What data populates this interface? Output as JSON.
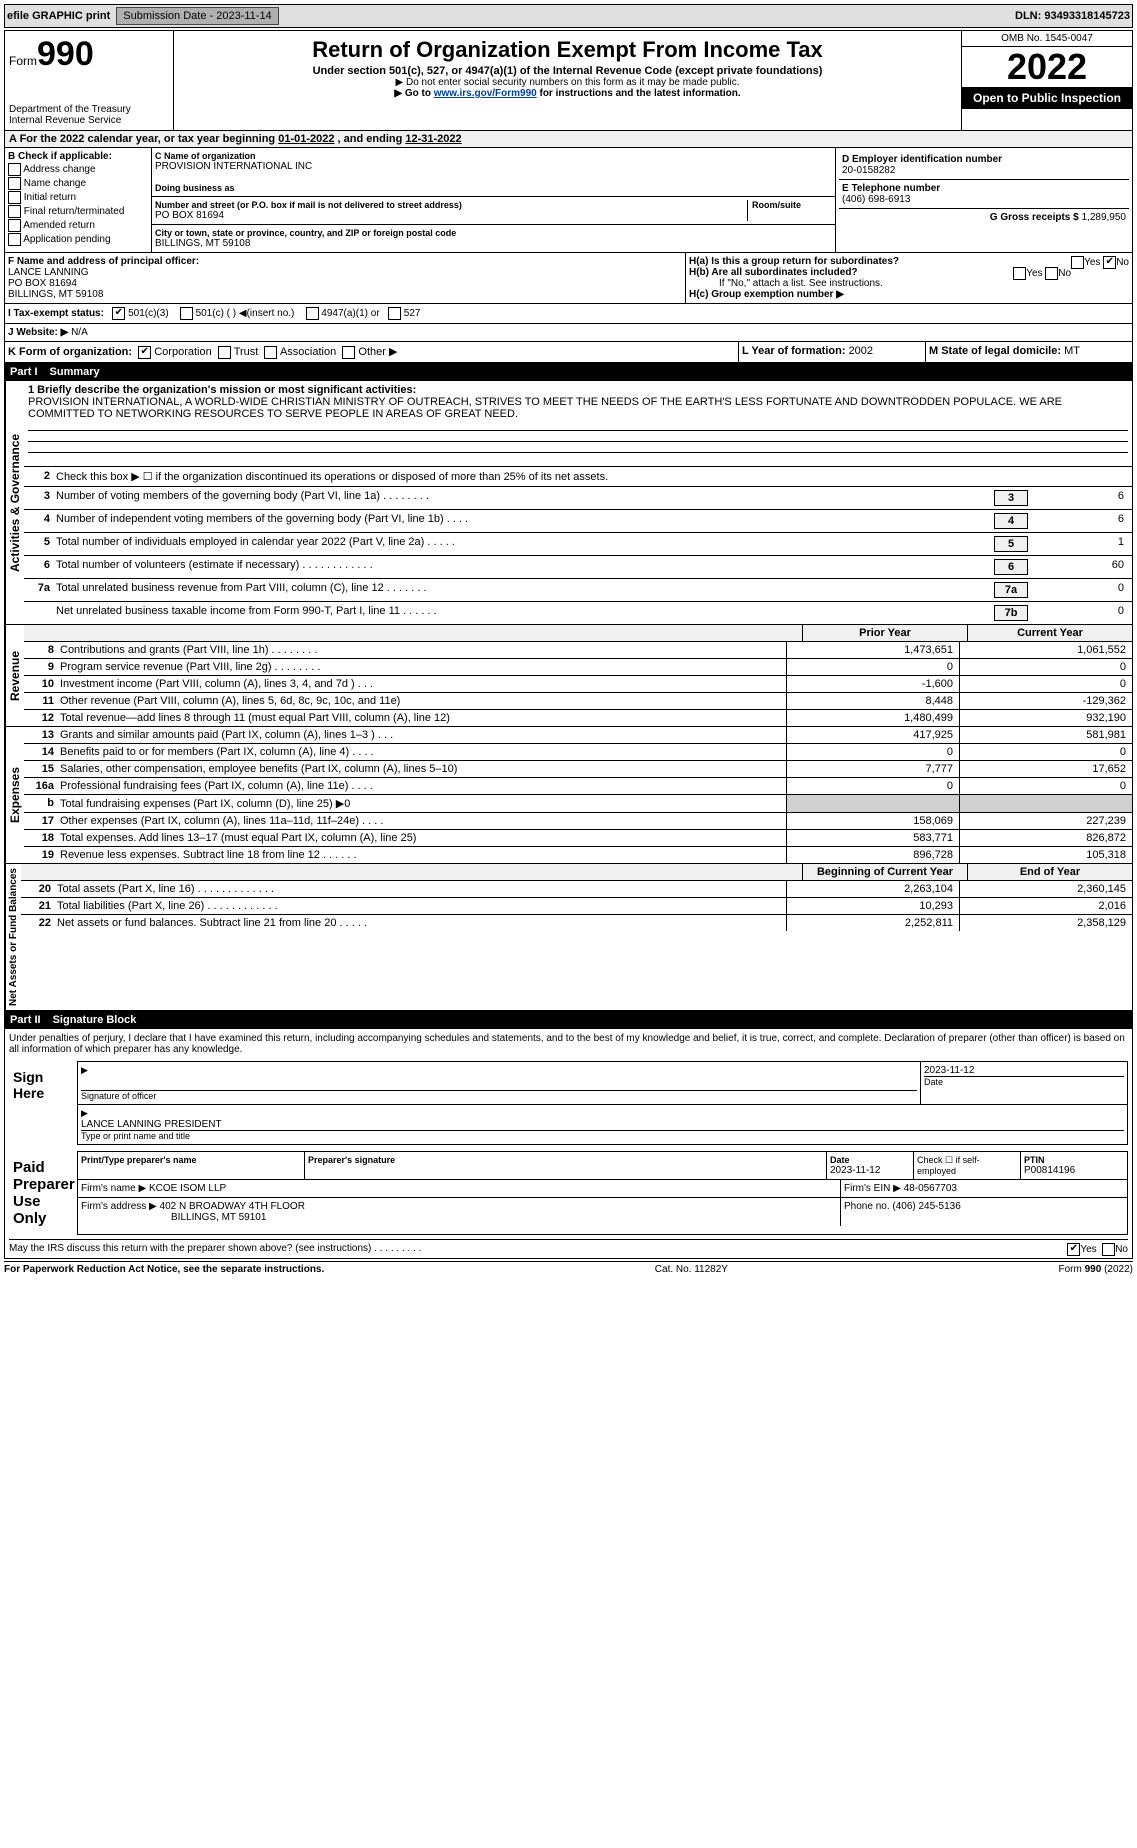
{
  "topbar": {
    "efile": "efile GRAPHIC print",
    "submission_label": "Submission Date - 2023-11-14",
    "dln": "DLN: 93493318145723"
  },
  "header": {
    "form_label": "Form",
    "form_number": "990",
    "dept1": "Department of the Treasury",
    "dept2": "Internal Revenue Service",
    "title": "Return of Organization Exempt From Income Tax",
    "subtitle": "Under section 501(c), 527, or 4947(a)(1) of the Internal Revenue Code (except private foundations)",
    "note1": "▶ Do not enter social security numbers on this form as it may be made public.",
    "note2_pre": "▶ Go to ",
    "note2_link": "www.irs.gov/Form990",
    "note2_post": " for instructions and the latest information.",
    "omb": "OMB No. 1545-0047",
    "year": "2022",
    "open_pub": "Open to Public Inspection"
  },
  "period": {
    "text_a": "A  For the 2022 calendar year, or tax year beginning ",
    "begin": "01-01-2022",
    "text_b": "   , and ending ",
    "end": "12-31-2022"
  },
  "boxB": {
    "label": "B Check if applicable:",
    "opts": [
      "Address change",
      "Name change",
      "Initial return",
      "Final return/terminated",
      "Amended return",
      "Application pending"
    ]
  },
  "boxC": {
    "name_lbl": "C Name of organization",
    "name": "PROVISION INTERNATIONAL INC",
    "dba_lbl": "Doing business as",
    "dba": "",
    "street_lbl": "Number and street (or P.O. box if mail is not delivered to street address)",
    "room_lbl": "Room/suite",
    "street": "PO BOX 81694",
    "city_lbl": "City or town, state or province, country, and ZIP or foreign postal code",
    "city": "BILLINGS, MT  59108"
  },
  "boxD": {
    "lbl": "D Employer identification number",
    "val": "20-0158282"
  },
  "boxE": {
    "lbl": "E Telephone number",
    "val": "(406) 698-6913"
  },
  "boxG": {
    "lbl": "G Gross receipts $ ",
    "val": "1,289,950"
  },
  "boxF": {
    "lbl": "F  Name and address of principal officer:",
    "name": "LANCE LANNING",
    "addr1": "PO BOX 81694",
    "addr2": "BILLINGS, MT  59108"
  },
  "boxH": {
    "a_lbl": "H(a)  Is this a group return for subordinates?",
    "a_yes": "Yes",
    "a_no": "No",
    "b_lbl": "H(b)  Are all subordinates included?",
    "b_yes": "Yes",
    "b_no": "No",
    "b_note": "If \"No,\" attach a list. See instructions.",
    "c_lbl": "H(c)  Group exemption number ▶"
  },
  "boxI": {
    "lbl": "I  Tax-exempt status:",
    "opts": [
      "501(c)(3)",
      "501(c) (   ) ◀(insert no.)",
      "4947(a)(1) or",
      "527"
    ]
  },
  "boxJ": {
    "lbl": "J  Website: ▶  ",
    "val": "N/A"
  },
  "boxK": {
    "lbl": "K Form of organization:",
    "opts": [
      "Corporation",
      "Trust",
      "Association",
      "Other ▶"
    ]
  },
  "boxL": {
    "lbl": "L Year of formation: ",
    "val": "2002"
  },
  "boxM": {
    "lbl": "M State of legal domicile: ",
    "val": "MT"
  },
  "part1": {
    "hdr_part": "Part I",
    "hdr_title": "Summary",
    "side_gov": "Activities & Governance",
    "side_rev": "Revenue",
    "side_exp": "Expenses",
    "side_net": "Net Assets or Fund Balances",
    "l1_lbl": "1  Briefly describe the organization's mission or most significant activities:",
    "l1_text": "PROVISION INTERNATIONAL, A WORLD-WIDE CHRISTIAN MINISTRY OF OUTREACH, STRIVES TO MEET THE NEEDS OF THE EARTH'S LESS FORTUNATE AND DOWNTRODDEN POPULACE. WE ARE COMMITTED TO NETWORKING RESOURCES TO SERVE PEOPLE IN AREAS OF GREAT NEED.",
    "l2": "Check this box ▶ ☐  if the organization discontinued its operations or disposed of more than 25% of its net assets.",
    "rows_gov": [
      {
        "n": "3",
        "d": "Number of voting members of the governing body (Part VI, line 1a)  .   .   .   .   .   .   .   .",
        "box": "3",
        "v": "6"
      },
      {
        "n": "4",
        "d": "Number of independent voting members of the governing body (Part VI, line 1b)  .   .   .   .",
        "box": "4",
        "v": "6"
      },
      {
        "n": "5",
        "d": "Total number of individuals employed in calendar year 2022 (Part V, line 2a)  .   .   .   .   .",
        "box": "5",
        "v": "1"
      },
      {
        "n": "6",
        "d": "Total number of volunteers (estimate if necessary)  .   .   .   .   .   .   .   .   .   .   .   .",
        "box": "6",
        "v": "60"
      },
      {
        "n": "7a",
        "d": "Total unrelated business revenue from Part VIII, column (C), line 12  .   .   .   .   .   .   .",
        "box": "7a",
        "v": "0"
      },
      {
        "n": "",
        "d": "Net unrelated business taxable income from Form 990-T, Part I, line 11  .   .   .   .   .   .",
        "box": "7b",
        "v": "0"
      }
    ],
    "col_prior": "Prior Year",
    "col_curr": "Current Year",
    "rows_rev": [
      {
        "n": "8",
        "d": "Contributions and grants (Part VIII, line 1h)  .   .   .   .   .   .   .   .",
        "p": "1,473,651",
        "c": "1,061,552"
      },
      {
        "n": "9",
        "d": "Program service revenue (Part VIII, line 2g)  .   .   .   .   .   .   .   .",
        "p": "0",
        "c": "0"
      },
      {
        "n": "10",
        "d": "Investment income (Part VIII, column (A), lines 3, 4, and 7d )  .   .   .",
        "p": "-1,600",
        "c": "0"
      },
      {
        "n": "11",
        "d": "Other revenue (Part VIII, column (A), lines 5, 6d, 8c, 9c, 10c, and 11e)",
        "p": "8,448",
        "c": "-129,362"
      },
      {
        "n": "12",
        "d": "Total revenue—add lines 8 through 11 (must equal Part VIII, column (A), line 12)",
        "p": "1,480,499",
        "c": "932,190"
      }
    ],
    "rows_exp": [
      {
        "n": "13",
        "d": "Grants and similar amounts paid (Part IX, column (A), lines 1–3 )  .   .   .",
        "p": "417,925",
        "c": "581,981"
      },
      {
        "n": "14",
        "d": "Benefits paid to or for members (Part IX, column (A), line 4)  .   .   .   .",
        "p": "0",
        "c": "0"
      },
      {
        "n": "15",
        "d": "Salaries, other compensation, employee benefits (Part IX, column (A), lines 5–10)",
        "p": "7,777",
        "c": "17,652"
      },
      {
        "n": "16a",
        "d": "Professional fundraising fees (Part IX, column (A), line 11e)  .   .   .   .",
        "p": "0",
        "c": "0"
      },
      {
        "n": "b",
        "d": "Total fundraising expenses (Part IX, column (D), line 25) ▶0",
        "p": "",
        "c": "",
        "shade": true
      },
      {
        "n": "17",
        "d": "Other expenses (Part IX, column (A), lines 11a–11d, 11f–24e)  .   .   .   .",
        "p": "158,069",
        "c": "227,239"
      },
      {
        "n": "18",
        "d": "Total expenses. Add lines 13–17 (must equal Part IX, column (A), line 25)",
        "p": "583,771",
        "c": "826,872"
      },
      {
        "n": "19",
        "d": "Revenue less expenses. Subtract line 18 from line 12  .   .   .   .   .   .",
        "p": "896,728",
        "c": "105,318"
      }
    ],
    "col_begin": "Beginning of Current Year",
    "col_end": "End of Year",
    "rows_net": [
      {
        "n": "20",
        "d": "Total assets (Part X, line 16)  .   .   .   .   .   .   .   .   .   .   .   .   .",
        "p": "2,263,104",
        "c": "2,360,145"
      },
      {
        "n": "21",
        "d": "Total liabilities (Part X, line 26)  .   .   .   .   .   .   .   .   .   .   .   .",
        "p": "10,293",
        "c": "2,016"
      },
      {
        "n": "22",
        "d": "Net assets or fund balances. Subtract line 21 from line 20  .   .   .   .   .",
        "p": "2,252,811",
        "c": "2,358,129"
      }
    ]
  },
  "part2": {
    "hdr_part": "Part II",
    "hdr_title": "Signature Block",
    "decl": "Under penalties of perjury, I declare that I have examined this return, including accompanying schedules and statements, and to the best of my knowledge and belief, it is true, correct, and complete. Declaration of preparer (other than officer) is based on all information of which preparer has any knowledge.",
    "sign_here": "Sign Here",
    "sig_officer_lbl": "Signature of officer",
    "sig_date_lbl": "Date",
    "sig_date": "2023-11-12",
    "officer_name": "LANCE LANNING  PRESIDENT",
    "officer_name_lbl": "Type or print name and title",
    "paid_lbl": "Paid Preparer Use Only",
    "prep_name_lbl": "Print/Type preparer's name",
    "prep_sig_lbl": "Preparer's signature",
    "prep_date_lbl": "Date",
    "prep_date": "2023-11-12",
    "prep_check_lbl": "Check ☐ if self-employed",
    "ptin_lbl": "PTIN",
    "ptin": "P00814196",
    "firm_name_lbl": "Firm's name      ▶",
    "firm_name": "KCOE ISOM LLP",
    "firm_ein_lbl": "Firm's EIN ▶",
    "firm_ein": "48-0567703",
    "firm_addr_lbl": "Firm's address ▶",
    "firm_addr1": "402 N BROADWAY 4TH FLOOR",
    "firm_addr2": "BILLINGS, MT  59101",
    "phone_lbl": "Phone no. ",
    "phone": "(406) 245-5136",
    "may_irs": "May the IRS discuss this return with the preparer shown above? (see instructions)  .   .   .   .   .   .   .   .   .",
    "may_yes": "Yes",
    "may_no": "No"
  },
  "footer": {
    "left": "For Paperwork Reduction Act Notice, see the separate instructions.",
    "mid": "Cat. No. 11282Y",
    "right_a": "Form ",
    "right_b": "990",
    "right_c": " (2022)"
  }
}
